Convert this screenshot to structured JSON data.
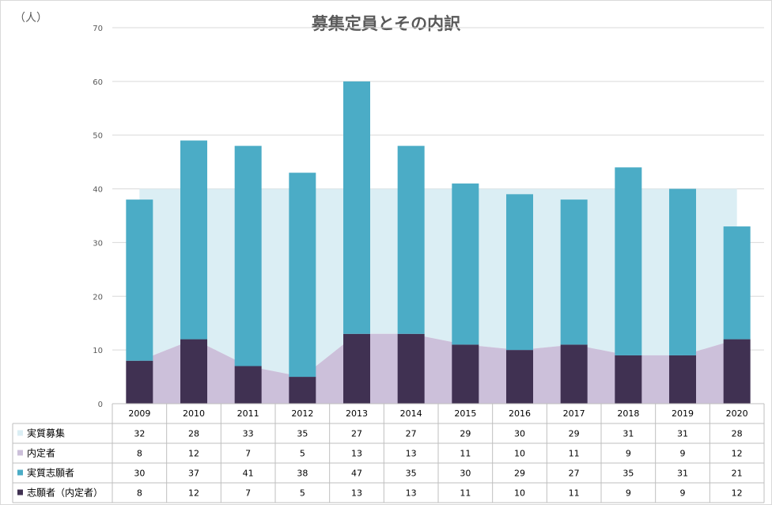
{
  "chart_data": {
    "type": "bar",
    "title": "募集定員とその内訳",
    "unit_label": "（人）",
    "ylim": [
      0,
      70
    ],
    "yticks": [
      0,
      10,
      20,
      30,
      40,
      50,
      60,
      70
    ],
    "categories": [
      "2009",
      "2010",
      "2011",
      "2012",
      "2013",
      "2014",
      "2015",
      "2016",
      "2017",
      "2018",
      "2019",
      "2020"
    ],
    "series": [
      {
        "name": "実質募集",
        "kind": "area",
        "color": "#dbeef4",
        "values": [
          32,
          28,
          33,
          35,
          27,
          27,
          29,
          30,
          29,
          31,
          31,
          28
        ]
      },
      {
        "name": "内定者",
        "kind": "area",
        "color": "#ccc0da",
        "values": [
          8,
          12,
          7,
          5,
          13,
          13,
          11,
          10,
          11,
          9,
          9,
          12
        ]
      },
      {
        "name": "実質志願者",
        "kind": "bar",
        "color": "#4bacc6",
        "values": [
          30,
          37,
          41,
          38,
          47,
          35,
          30,
          29,
          27,
          35,
          31,
          21
        ]
      },
      {
        "name": "志願者（内定者）",
        "kind": "bar",
        "color": "#403152",
        "values": [
          8,
          12,
          7,
          5,
          13,
          13,
          11,
          10,
          11,
          9,
          9,
          12
        ]
      }
    ],
    "grid": true,
    "legend": "data-table"
  }
}
